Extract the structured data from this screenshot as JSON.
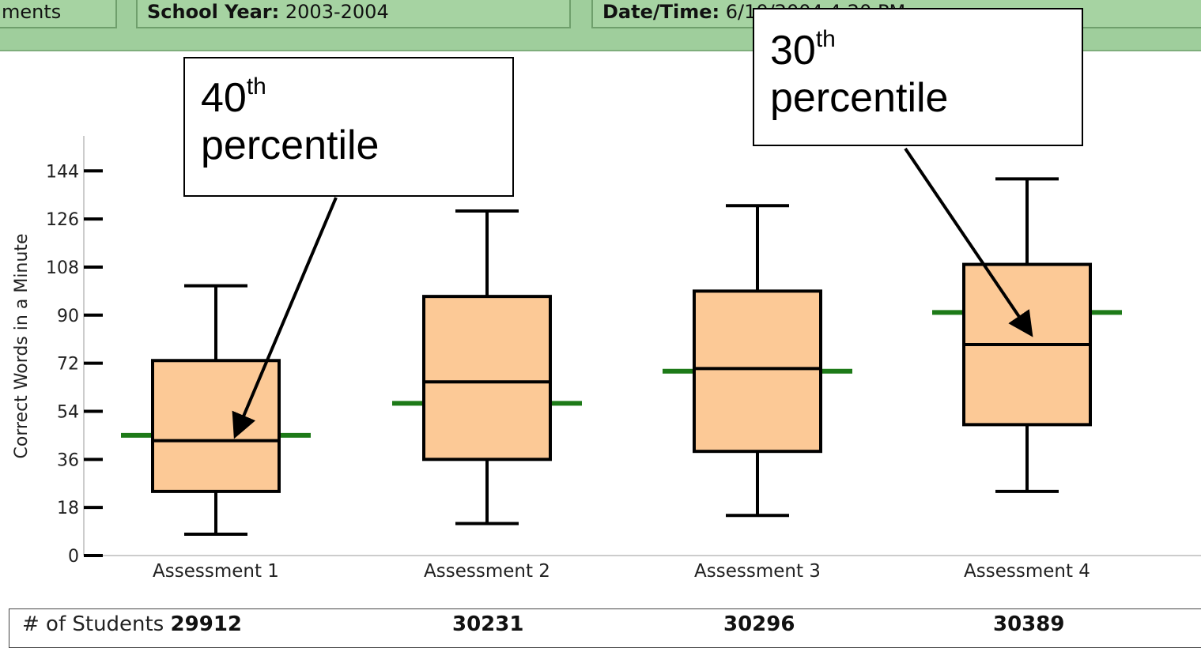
{
  "header": {
    "left_tab": "ments",
    "school_year_label": "School Year:",
    "school_year_value": "2003-2004",
    "datetime_label": "Date/Time:",
    "datetime_value": "6/10/2004 4:20 PM"
  },
  "colors": {
    "header_bg": "#9fce9c",
    "box_fill": "#fcc996",
    "benchmark_line": "#1d7a18",
    "axis": "#cccccc"
  },
  "chart_data": {
    "type": "boxplot",
    "ylabel": "Correct Words in a Minute",
    "ylim": [
      0,
      162
    ],
    "yticks": [
      0,
      18,
      36,
      54,
      72,
      90,
      108,
      126,
      144
    ],
    "categories": [
      "Assessment 1",
      "Assessment 2",
      "Assessment 3",
      "Assessment 4"
    ],
    "boxes": [
      {
        "whisker_low": 8,
        "q1": 24,
        "median": 43,
        "q3": 73,
        "whisker_high": 101,
        "benchmark": 45
      },
      {
        "whisker_low": 12,
        "q1": 36,
        "median": 65,
        "q3": 97,
        "whisker_high": 129,
        "benchmark": 57
      },
      {
        "whisker_low": 15,
        "q1": 39,
        "median": 70,
        "q3": 99,
        "whisker_high": 131,
        "benchmark": 69
      },
      {
        "whisker_low": 24,
        "q1": 49,
        "median": 79,
        "q3": 109,
        "whisker_high": 141,
        "benchmark": 91
      }
    ],
    "annotations": [
      {
        "text": "40",
        "sup": "th",
        "line2": "percentile",
        "target_category": "Assessment 1"
      },
      {
        "text": "30",
        "sup": "th",
        "line2": "percentile",
        "target_category": "Assessment 4"
      }
    ]
  },
  "students": {
    "label": "# of Students",
    "counts": [
      "29912",
      "30231",
      "30296",
      "30389"
    ]
  }
}
